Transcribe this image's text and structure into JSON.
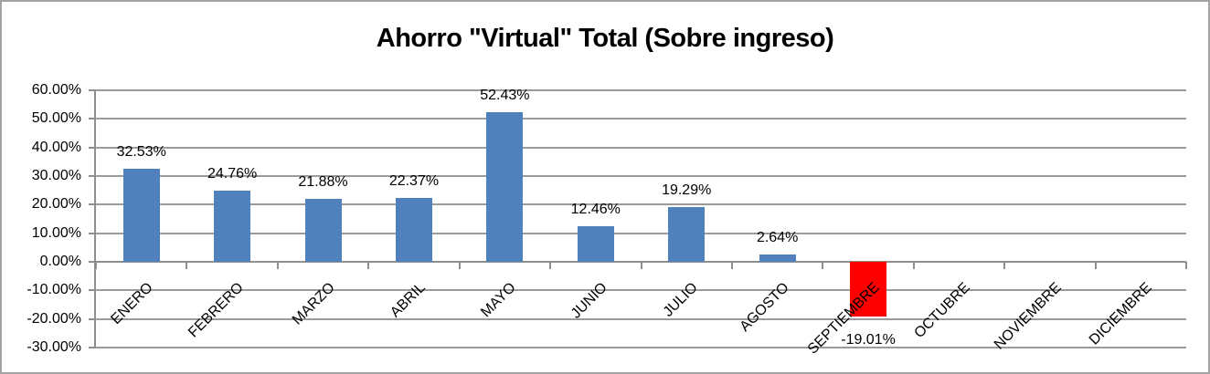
{
  "chart_data": {
    "type": "bar",
    "title": "Ahorro \"Virtual\" Total (Sobre ingreso)",
    "categories": [
      "ENERO",
      "FEBRERO",
      "MARZO",
      "ABRIL",
      "MAYO",
      "JUNIO",
      "JULIO",
      "AGOSTO",
      "SEPTIEMBRE",
      "OCTUBRE",
      "NOVIEMBRE",
      "DICIEMBRE"
    ],
    "values": [
      32.53,
      24.76,
      21.88,
      22.37,
      52.43,
      12.46,
      19.29,
      2.64,
      -19.01,
      null,
      null,
      null
    ],
    "data_labels": [
      "32.53%",
      "24.76%",
      "21.88%",
      "22.37%",
      "52.43%",
      "12.46%",
      "19.29%",
      "2.64%",
      "-19.01%",
      "",
      "",
      ""
    ],
    "xlabel": "",
    "ylabel": "",
    "ylim": [
      -30,
      60
    ],
    "y_tick_step": 10,
    "y_tick_labels": [
      "60.00%",
      "50.00%",
      "40.00%",
      "30.00%",
      "20.00%",
      "10.00%",
      "0.00%",
      "-10.00%",
      "-20.00%",
      "-30.00%"
    ],
    "y_tick_values": [
      60,
      50,
      40,
      30,
      20,
      10,
      0,
      -10,
      -20,
      -30
    ],
    "grid": true,
    "legend": false,
    "bar_color_positive": "#4F81BD",
    "bar_color_negative": "#FF0000",
    "gridline_color": "#9B9B9B"
  }
}
